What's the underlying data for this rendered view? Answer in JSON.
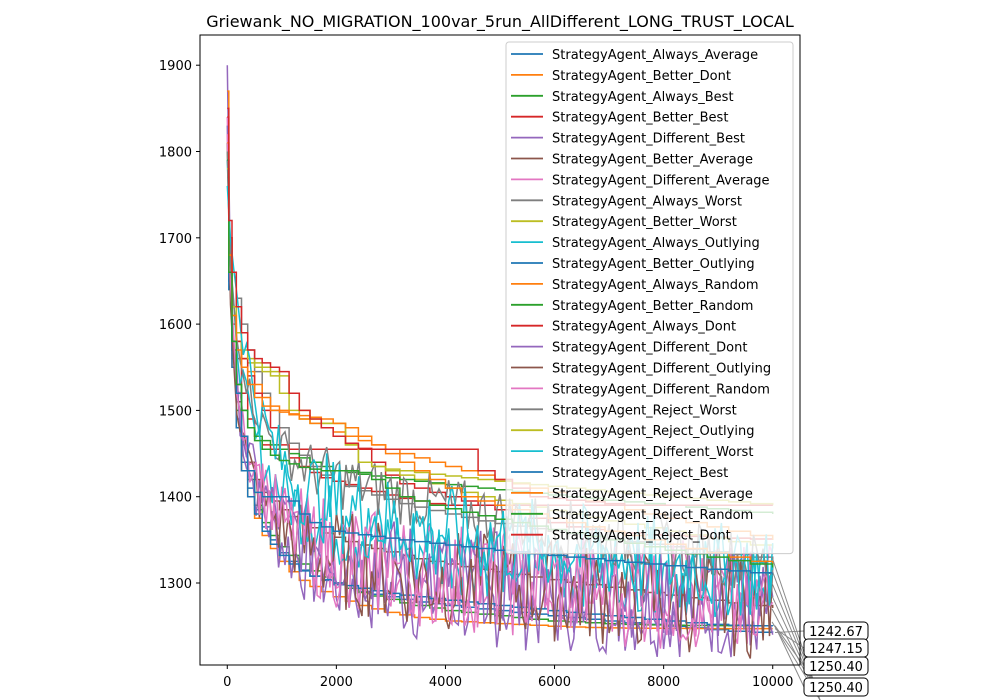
{
  "chart_data": {
    "type": "line",
    "title": "Griewank_NO_MIGRATION_100var_5run_AllDifferent_LONG_TRUST_LOCAL",
    "xlabel": "",
    "ylabel": "",
    "xlim": [
      -500,
      10500
    ],
    "ylim": [
      1205,
      1935
    ],
    "xticks": [
      0,
      2000,
      4000,
      6000,
      8000,
      10000
    ],
    "xtick_labels": [
      "0",
      "2000",
      "4000",
      "6000",
      "8000",
      "10000"
    ],
    "yticks": [
      1300,
      1400,
      1500,
      1600,
      1700,
      1800,
      1900
    ],
    "ytick_labels": [
      "1300",
      "1400",
      "1500",
      "1600",
      "1700",
      "1800",
      "1900"
    ],
    "legend_position": "top-right",
    "grid": false,
    "series": [
      {
        "name": "StrategyAgent_Always_Average",
        "color": "#1f77b4",
        "style": "step",
        "values": [
          1810,
          1660,
          1560,
          1490,
          1440,
          1410,
          1385,
          1365,
          1350,
          1335,
          1325,
          1315,
          1308,
          1303,
          1298,
          1294,
          1290,
          1287,
          1284,
          1281,
          1278,
          1276,
          1274,
          1272,
          1270,
          1268,
          1266,
          1264,
          1262,
          1260,
          1258,
          1256,
          1254,
          1252,
          1250,
          1248,
          1246,
          1244,
          1243,
          1242.67
        ]
      },
      {
        "name": "StrategyAgent_Better_Dont",
        "color": "#ff7f0e",
        "style": "step",
        "values": [
          1800,
          1650,
          1550,
          1480,
          1430,
          1400,
          1375,
          1355,
          1340,
          1325,
          1313,
          1303,
          1296,
          1290,
          1284,
          1279,
          1274,
          1270,
          1266,
          1263,
          1260,
          1258,
          1256,
          1255,
          1254,
          1253,
          1252,
          1251,
          1250,
          1249,
          1248.5,
          1248,
          1247.8,
          1247.6,
          1247.4,
          1247.3,
          1247.2,
          1247.2,
          1247.15,
          1247.15
        ]
      },
      {
        "name": "StrategyAgent_Always_Best",
        "color": "#2ca02c",
        "style": "step",
        "values": [
          1780,
          1650,
          1570,
          1500,
          1460,
          1420,
          1390,
          1370,
          1355,
          1342,
          1332,
          1322,
          1314,
          1307,
          1300,
          1294,
          1289,
          1285,
          1281,
          1277,
          1274,
          1271,
          1268,
          1266,
          1264,
          1262,
          1260,
          1258,
          1256,
          1255,
          1254,
          1253,
          1252,
          1251.5,
          1251,
          1250.8,
          1250.6,
          1250.5,
          1250.4,
          1250.4
        ]
      },
      {
        "name": "StrategyAgent_Better_Best",
        "color": "#d62728",
        "style": "step",
        "values": [
          1820,
          1680,
          1600,
          1560,
          1520,
          1490,
          1470,
          1460,
          1455,
          1455,
          1455,
          1455,
          1455,
          1455,
          1455,
          1455,
          1455,
          1440,
          1425,
          1415,
          1410,
          1405,
          1400,
          1395,
          1390,
          1385,
          1380,
          1375,
          1370,
          1365,
          1362,
          1360,
          1358,
          1356,
          1355,
          1354,
          1353,
          1352,
          1351,
          1350
        ]
      },
      {
        "name": "StrategyAgent_Different_Best",
        "color": "#9467bd",
        "style": "noisy",
        "amp": 55,
        "values": [
          1900,
          1700,
          1600,
          1530,
          1480,
          1440,
          1410,
          1385,
          1365,
          1350,
          1338,
          1328,
          1320,
          1313,
          1307,
          1302,
          1298,
          1294,
          1291,
          1288,
          1286,
          1284,
          1282,
          1280,
          1279,
          1278,
          1277,
          1276,
          1275,
          1274,
          1273,
          1272,
          1271,
          1270,
          1269,
          1268,
          1267,
          1266,
          1265,
          1264
        ]
      },
      {
        "name": "StrategyAgent_Better_Average",
        "color": "#8c564b",
        "style": "step",
        "values": [
          1790,
          1660,
          1570,
          1510,
          1470,
          1440,
          1420,
          1405,
          1395,
          1385,
          1377,
          1370,
          1364,
          1358,
          1353,
          1348,
          1344,
          1340,
          1336,
          1332,
          1328,
          1325,
          1322,
          1319,
          1316,
          1313,
          1310,
          1307,
          1304,
          1301,
          1298,
          1295,
          1292,
          1289,
          1286,
          1283,
          1280,
          1277,
          1274,
          1271
        ]
      },
      {
        "name": "StrategyAgent_Different_Average",
        "color": "#e377c2",
        "style": "noisy",
        "amp": 60,
        "values": [
          1840,
          1690,
          1590,
          1530,
          1480,
          1445,
          1420,
          1400,
          1385,
          1372,
          1362,
          1353,
          1346,
          1340,
          1335,
          1330,
          1326,
          1322,
          1319,
          1316,
          1313,
          1311,
          1309,
          1307,
          1305,
          1303,
          1301,
          1300,
          1299,
          1298,
          1297,
          1296,
          1295,
          1294,
          1293,
          1292,
          1291,
          1290,
          1289,
          1288
        ]
      },
      {
        "name": "StrategyAgent_Always_Worst",
        "color": "#7f7f7f",
        "style": "step",
        "values": [
          1800,
          1700,
          1660,
          1630,
          1600,
          1570,
          1545,
          1520,
          1500,
          1480,
          1462,
          1448,
          1435,
          1425,
          1418,
          1412,
          1407,
          1402,
          1397,
          1392,
          1388,
          1384,
          1380,
          1376,
          1372,
          1369,
          1366,
          1363,
          1360,
          1357,
          1354,
          1351,
          1348,
          1345,
          1342,
          1339,
          1336,
          1333,
          1330,
          1327
        ]
      },
      {
        "name": "StrategyAgent_Better_Worst",
        "color": "#bcbd22",
        "style": "step",
        "values": [
          1760,
          1660,
          1610,
          1580,
          1560,
          1555,
          1550,
          1545,
          1540,
          1520,
          1500,
          1490,
          1485,
          1485,
          1485,
          1460,
          1440,
          1435,
          1430,
          1425,
          1420,
          1415,
          1410,
          1405,
          1400,
          1396,
          1392,
          1388,
          1384,
          1380,
          1376,
          1372,
          1368,
          1364,
          1360,
          1356,
          1352,
          1348,
          1344,
          1340
        ]
      },
      {
        "name": "StrategyAgent_Always_Outlying",
        "color": "#17becf",
        "style": "noisy",
        "amp": 50,
        "values": [
          1790,
          1700,
          1650,
          1590,
          1540,
          1500,
          1470,
          1445,
          1425,
          1410,
          1398,
          1388,
          1380,
          1373,
          1367,
          1362,
          1358,
          1354,
          1350,
          1347,
          1344,
          1341,
          1338,
          1336,
          1334,
          1332,
          1330,
          1328,
          1326,
          1324,
          1322,
          1320,
          1318,
          1316,
          1314,
          1312,
          1310,
          1308,
          1306,
          1304
        ]
      },
      {
        "name": "StrategyAgent_Better_Outlying",
        "color": "#1f77b4",
        "style": "step",
        "values": [
          1780,
          1640,
          1550,
          1480,
          1430,
          1400,
          1380,
          1360,
          1345,
          1332,
          1322,
          1314,
          1308,
          1304,
          1300,
          1297,
          1294,
          1291,
          1288,
          1286,
          1284,
          1282,
          1280,
          1278,
          1276,
          1274,
          1272,
          1270,
          1268,
          1266,
          1264,
          1262,
          1260,
          1258,
          1256,
          1254,
          1252,
          1251,
          1250.5,
          1250.4
        ]
      },
      {
        "name": "StrategyAgent_Always_Random",
        "color": "#ff7f0e",
        "style": "step",
        "values": [
          1870,
          1700,
          1620,
          1580,
          1560,
          1545,
          1530,
          1515,
          1505,
          1500,
          1495,
          1490,
          1485,
          1480,
          1475,
          1470,
          1465,
          1460,
          1455,
          1450,
          1445,
          1440,
          1435,
          1430,
          1425,
          1420,
          1415,
          1410,
          1405,
          1400,
          1395,
          1390,
          1385,
          1380,
          1375,
          1370,
          1365,
          1360,
          1355,
          1350
        ]
      },
      {
        "name": "StrategyAgent_Better_Random",
        "color": "#2ca02c",
        "style": "step",
        "values": [
          1770,
          1660,
          1580,
          1530,
          1500,
          1480,
          1470,
          1465,
          1460,
          1455,
          1450,
          1445,
          1440,
          1435,
          1430,
          1428,
          1426,
          1424,
          1422,
          1420,
          1418,
          1416,
          1414,
          1412,
          1410,
          1408,
          1406,
          1404,
          1402,
          1400,
          1398,
          1396,
          1394,
          1392,
          1390,
          1388,
          1386,
          1384,
          1382,
          1380
        ]
      },
      {
        "name": "StrategyAgent_Always_Dont",
        "color": "#d62728",
        "style": "step",
        "values": [
          1850,
          1700,
          1620,
          1580,
          1560,
          1540,
          1520,
          1500,
          1480,
          1460,
          1445,
          1435,
          1428,
          1422,
          1418,
          1414,
          1410,
          1406,
          1402,
          1398,
          1395,
          1392,
          1390,
          1390,
          1390,
          1390,
          1390,
          1390,
          1390,
          1390,
          1390,
          1390,
          1390,
          1390,
          1390,
          1390,
          1390,
          1390,
          1390,
          1390
        ]
      },
      {
        "name": "StrategyAgent_Different_Dont",
        "color": "#9467bd",
        "style": "noisy",
        "amp": 55,
        "values": [
          1830,
          1680,
          1590,
          1530,
          1485,
          1450,
          1425,
          1405,
          1390,
          1377,
          1366,
          1357,
          1350,
          1344,
          1339,
          1334,
          1330,
          1326,
          1323,
          1320,
          1317,
          1314,
          1312,
          1310,
          1308,
          1306,
          1304,
          1302,
          1300,
          1298,
          1296,
          1294,
          1292,
          1290,
          1288,
          1286,
          1284,
          1282,
          1280,
          1278
        ]
      },
      {
        "name": "StrategyAgent_Different_Outlying",
        "color": "#8c564b",
        "style": "noisy",
        "amp": 60,
        "values": [
          1810,
          1670,
          1580,
          1520,
          1475,
          1440,
          1415,
          1395,
          1380,
          1367,
          1357,
          1348,
          1341,
          1335,
          1330,
          1325,
          1321,
          1317,
          1314,
          1311,
          1308,
          1306,
          1304,
          1302,
          1300,
          1298,
          1296,
          1294,
          1292,
          1290,
          1288,
          1286,
          1284,
          1282,
          1280,
          1278,
          1276,
          1274,
          1272,
          1270
        ]
      },
      {
        "name": "StrategyAgent_Different_Random",
        "color": "#e377c2",
        "style": "noisy",
        "amp": 65,
        "values": [
          1820,
          1690,
          1610,
          1550,
          1500,
          1460,
          1430,
          1408,
          1390,
          1376,
          1365,
          1356,
          1348,
          1342,
          1336,
          1331,
          1327,
          1323,
          1320,
          1317,
          1314,
          1312,
          1310,
          1308,
          1306,
          1304,
          1302,
          1300,
          1298,
          1296,
          1294,
          1292,
          1290,
          1288,
          1286,
          1284,
          1282,
          1280,
          1278,
          1276
        ]
      },
      {
        "name": "StrategyAgent_Reject_Worst",
        "color": "#7f7f7f",
        "style": "noisy",
        "amp": 35,
        "values": [
          1800,
          1700,
          1640,
          1600,
          1560,
          1530,
          1505,
          1485,
          1470,
          1458,
          1448,
          1440,
          1433,
          1427,
          1422,
          1418,
          1414,
          1410,
          1406,
          1402,
          1398,
          1394,
          1390,
          1386,
          1382,
          1378,
          1374,
          1370,
          1366,
          1362,
          1358,
          1354,
          1350,
          1346,
          1342,
          1338,
          1334,
          1330,
          1326,
          1322
        ]
      },
      {
        "name": "StrategyAgent_Reject_Outlying",
        "color": "#bcbd22",
        "style": "step",
        "values": [
          1780,
          1680,
          1620,
          1590,
          1570,
          1560,
          1555,
          1550,
          1545,
          1540,
          1520,
          1500,
          1490,
          1485,
          1485,
          1460,
          1440,
          1435,
          1432,
          1430,
          1428,
          1426,
          1424,
          1422,
          1420,
          1418,
          1416,
          1414,
          1412,
          1410,
          1408,
          1406,
          1404,
          1402,
          1400,
          1398,
          1396,
          1394,
          1392,
          1390
        ]
      },
      {
        "name": "StrategyAgent_Different_Worst",
        "color": "#17becf",
        "style": "noisy",
        "amp": 55,
        "values": [
          1760,
          1720,
          1680,
          1640,
          1600,
          1560,
          1520,
          1490,
          1465,
          1445,
          1430,
          1418,
          1408,
          1400,
          1393,
          1387,
          1382,
          1377,
          1373,
          1369,
          1366,
          1363,
          1360,
          1357,
          1354,
          1351,
          1348,
          1345,
          1342,
          1339,
          1336,
          1333,
          1330,
          1327,
          1324,
          1321,
          1318,
          1315,
          1312,
          1309
        ]
      },
      {
        "name": "StrategyAgent_Reject_Best",
        "color": "#1f77b4",
        "style": "step",
        "values": [
          1790,
          1660,
          1580,
          1520,
          1470,
          1430,
          1405,
          1400,
          1400,
          1400,
          1395,
          1380,
          1370,
          1365,
          1360,
          1358,
          1356,
          1354,
          1352,
          1350,
          1348,
          1346,
          1344,
          1342,
          1340,
          1338,
          1336,
          1334,
          1332,
          1330,
          1328,
          1326,
          1324,
          1322,
          1320,
          1318,
          1316,
          1314,
          1312,
          1310
        ]
      },
      {
        "name": "StrategyAgent_Reject_Average",
        "color": "#ff7f0e",
        "style": "step",
        "values": [
          1810,
          1680,
          1610,
          1570,
          1550,
          1530,
          1515,
          1505,
          1500,
          1498,
          1496,
          1494,
          1492,
          1490,
          1485,
          1480,
          1470,
          1460,
          1450,
          1440,
          1430,
          1420,
          1410,
          1400,
          1395,
          1390,
          1385,
          1380,
          1375,
          1370,
          1365,
          1360,
          1355,
          1350,
          1345,
          1340,
          1335,
          1330,
          1325,
          1320
        ]
      },
      {
        "name": "StrategyAgent_Reject_Random",
        "color": "#2ca02c",
        "style": "step",
        "values": [
          1790,
          1660,
          1580,
          1530,
          1500,
          1480,
          1465,
          1455,
          1448,
          1442,
          1438,
          1434,
          1432,
          1430,
          1430,
          1430,
          1428,
          1420,
          1410,
          1400,
          1395,
          1390,
          1386,
          1382,
          1378,
          1374,
          1370,
          1366,
          1362,
          1358,
          1354,
          1350,
          1346,
          1342,
          1338,
          1334,
          1330,
          1326,
          1322,
          1318
        ]
      },
      {
        "name": "StrategyAgent_Reject_Dont",
        "color": "#d62728",
        "style": "step",
        "values": [
          1840,
          1720,
          1660,
          1620,
          1590,
          1570,
          1560,
          1555,
          1550,
          1545,
          1520,
          1500,
          1490,
          1480,
          1470,
          1462,
          1456,
          1455,
          1455,
          1455,
          1455,
          1455,
          1455,
          1455,
          1430,
          1420,
          1410,
          1400,
          1398,
          1396,
          1394,
          1392,
          1390,
          1390,
          1390,
          1390,
          1390,
          1390,
          1390,
          1390
        ]
      }
    ],
    "annotations": [
      "1242.67",
      "1247.15",
      "1250.40",
      "1250.40"
    ]
  }
}
